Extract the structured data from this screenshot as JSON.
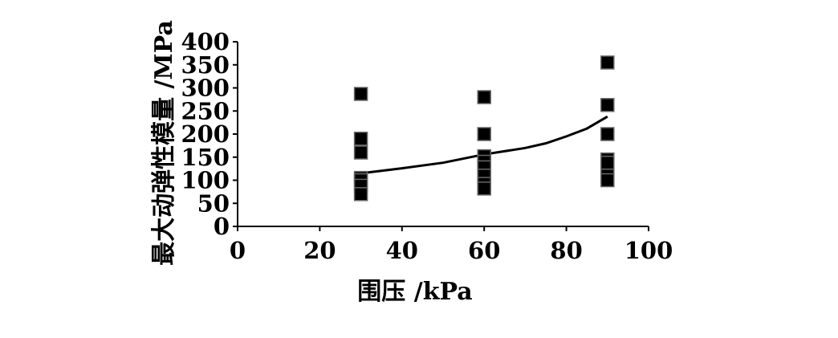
{
  "chart_data": {
    "type": "scatter",
    "xlabel": "围压 /kPa",
    "ylabel": "最大动弹性模量 /MPa",
    "xlim": [
      0,
      100
    ],
    "ylim": [
      0,
      400
    ],
    "x_ticks": [
      "0",
      "20",
      "40",
      "60",
      "80",
      "100"
    ],
    "y_ticks": [
      "0",
      "50",
      "100",
      "150",
      "200",
      "250",
      "300",
      "350",
      "400"
    ],
    "grid": false,
    "points": [
      {
        "x": 30,
        "y": 287
      },
      {
        "x": 30,
        "y": 190
      },
      {
        "x": 30,
        "y": 160
      },
      {
        "x": 30,
        "y": 105
      },
      {
        "x": 30,
        "y": 100
      },
      {
        "x": 30,
        "y": 88
      },
      {
        "x": 30,
        "y": 70
      },
      {
        "x": 60,
        "y": 280
      },
      {
        "x": 60,
        "y": 200
      },
      {
        "x": 60,
        "y": 152
      },
      {
        "x": 60,
        "y": 140
      },
      {
        "x": 60,
        "y": 128
      },
      {
        "x": 60,
        "y": 110
      },
      {
        "x": 60,
        "y": 92
      },
      {
        "x": 60,
        "y": 82
      },
      {
        "x": 90,
        "y": 355
      },
      {
        "x": 90,
        "y": 263
      },
      {
        "x": 90,
        "y": 200
      },
      {
        "x": 90,
        "y": 145
      },
      {
        "x": 90,
        "y": 138
      },
      {
        "x": 90,
        "y": 110
      },
      {
        "x": 90,
        "y": 100
      }
    ],
    "trend_line": [
      {
        "x": 30,
        "y": 115
      },
      {
        "x": 40,
        "y": 126
      },
      {
        "x": 50,
        "y": 138
      },
      {
        "x": 60,
        "y": 156
      },
      {
        "x": 70,
        "y": 170
      },
      {
        "x": 75,
        "y": 180
      },
      {
        "x": 80,
        "y": 195
      },
      {
        "x": 85,
        "y": 212
      },
      {
        "x": 90,
        "y": 238
      }
    ],
    "marker_color": "#000000",
    "line_color": "#000000"
  }
}
